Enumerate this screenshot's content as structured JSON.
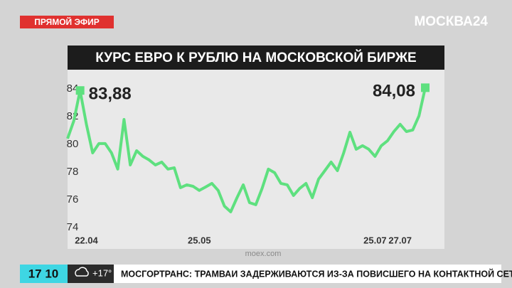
{
  "overlay": {
    "live_badge": "ПРЯМОЙ ЭФИР",
    "channel": "МОСКВА24",
    "clock": "17 10",
    "weather": "+17°",
    "ticker": "МОСГОРТРАНС: ТРАМВАИ ЗАДЕРЖИВАЮТСЯ ИЗ-ЗА ПОВИСШЕГО НА КОНТАКТНОЙ СЕТИ ДЕРЕВА"
  },
  "chart_data": {
    "type": "line",
    "title": "КУРС ЕВРО К РУБЛЮ НА МОСКОВСКОЙ БИРЖЕ",
    "source": "moex.com",
    "categories": [
      null,
      null,
      null,
      "22.04",
      null,
      null,
      null,
      null,
      null,
      null,
      null,
      null,
      null,
      null,
      null,
      null,
      null,
      null,
      null,
      null,
      null,
      "25.05",
      null,
      null,
      null,
      null,
      null,
      null,
      null,
      null,
      null,
      null,
      null,
      null,
      null,
      null,
      null,
      null,
      null,
      null,
      null,
      null,
      null,
      null,
      null,
      null,
      null,
      null,
      null,
      "25.07",
      null,
      null,
      null,
      "27.07",
      null,
      null,
      null,
      null
    ],
    "values": [
      80.41,
      81.69,
      83.88,
      81.44,
      79.38,
      80.05,
      80.05,
      79.38,
      78.21,
      81.79,
      78.51,
      79.54,
      79.13,
      78.87,
      78.51,
      78.72,
      78.21,
      78.31,
      76.87,
      77.08,
      76.97,
      76.67,
      76.92,
      77.18,
      76.67,
      75.54,
      75.13,
      76.15,
      77.08,
      75.79,
      75.64,
      76.82,
      78.21,
      77.95,
      77.18,
      77.08,
      76.31,
      76.82,
      77.18,
      76.15,
      77.49,
      78.1,
      78.72,
      78.1,
      79.38,
      80.87,
      79.64,
      79.9,
      79.64,
      79.13,
      79.9,
      80.26,
      80.92,
      81.44,
      80.92,
      81.03,
      82.05,
      84.08
    ],
    "value_labels": [
      null,
      null,
      "83,88",
      null,
      null,
      null,
      null,
      null,
      null,
      null,
      null,
      null,
      null,
      null,
      null,
      null,
      null,
      null,
      null,
      null,
      null,
      null,
      null,
      null,
      null,
      null,
      null,
      null,
      null,
      null,
      null,
      null,
      null,
      null,
      null,
      null,
      null,
      null,
      null,
      null,
      null,
      null,
      null,
      null,
      null,
      null,
      null,
      null,
      null,
      null,
      null,
      null,
      null,
      null,
      null,
      null,
      null,
      "84,08"
    ],
    "color": "#5ee07f",
    "ylim": [
      72.97,
      85.38
    ],
    "yticks": [
      74,
      76,
      78,
      80,
      82,
      84
    ]
  }
}
